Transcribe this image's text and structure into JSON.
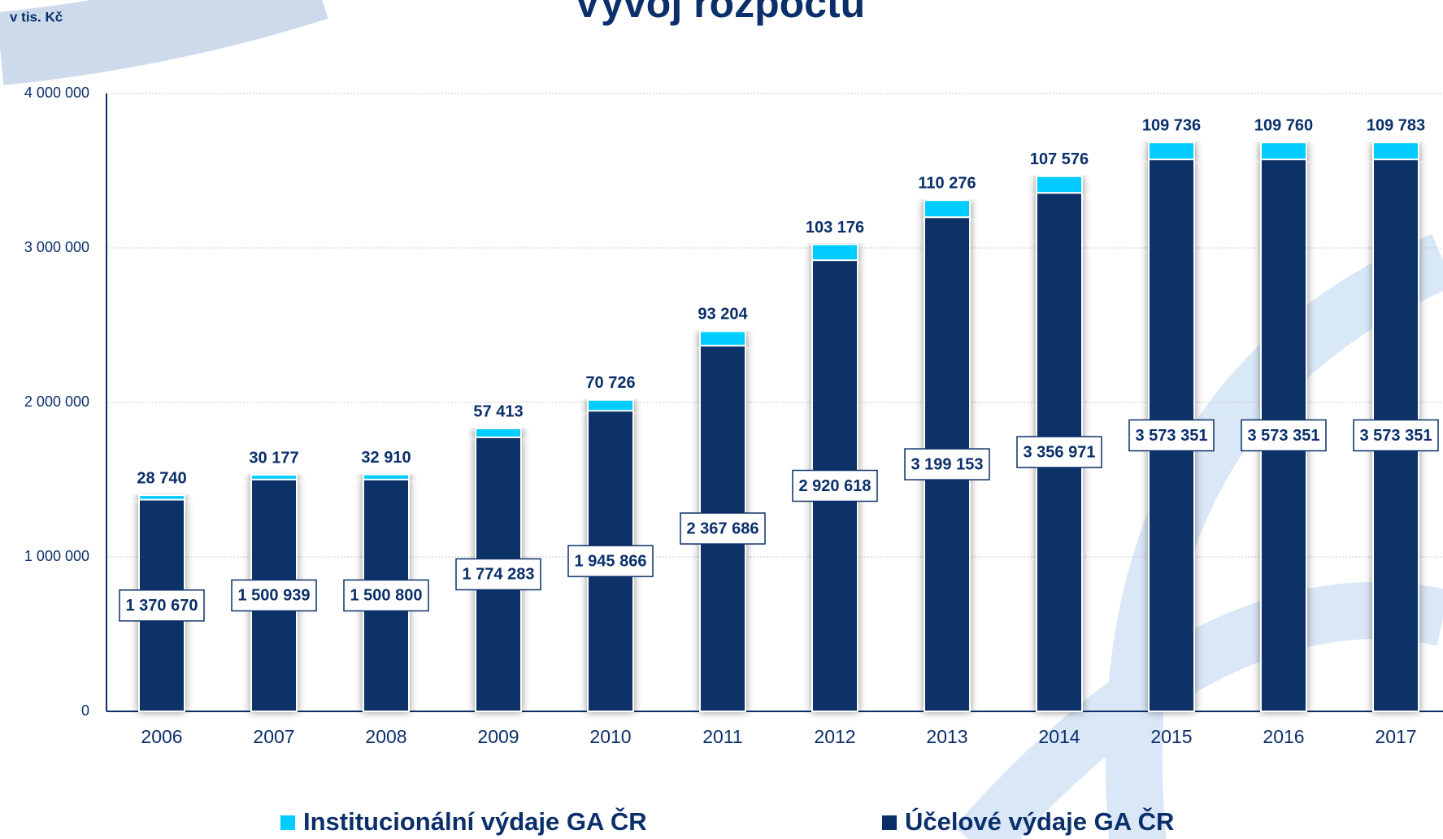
{
  "chart_data": {
    "type": "stacked_bar",
    "title": "Vývoj rozpočtu",
    "y_label": "v tis. Kč",
    "categories": [
      "2006",
      "2007",
      "2008",
      "2009",
      "2010",
      "2011",
      "2012",
      "2013",
      "2014",
      "2015",
      "2016",
      "2017"
    ],
    "series": [
      {
        "name": "Účelové výdaje GA ČR",
        "color": "#0b3068",
        "values": [
          1370670,
          1500939,
          1500800,
          1774283,
          1945866,
          2367686,
          2920618,
          3199153,
          3356971,
          3573351,
          3573351,
          3573351
        ],
        "value_labels": [
          "1 370 670",
          "1 500 939",
          "1 500 800",
          "1 774 283",
          "1 945 866",
          "2 367 686",
          "2 920 618",
          "3 199 153",
          "3 356 971",
          "3 573 351",
          "3 573 351",
          "3 573 351"
        ]
      },
      {
        "name": "Institucionální výdaje GA ČR",
        "color": "#00ccff",
        "values": [
          28740,
          30177,
          32910,
          57413,
          70726,
          93204,
          103176,
          110276,
          107576,
          109736,
          109760,
          109783
        ],
        "value_labels": [
          "28 740",
          "30 177",
          "32 910",
          "57 413",
          "70 726",
          "93 204",
          "103 176",
          "110 276",
          "107 576",
          "109 736",
          "109 760",
          "109 783"
        ]
      }
    ],
    "ylim": [
      0,
      4000000
    ],
    "yticks": [
      0,
      {
        "value": 1000000,
        "label": "1 000 000"
      },
      {
        "value": 2000000,
        "label": "2 000 000"
      },
      {
        "value": 3000000,
        "label": "3 000 000"
      },
      {
        "value": 4000000,
        "label": "4 000 000"
      }
    ],
    "grid": true
  }
}
